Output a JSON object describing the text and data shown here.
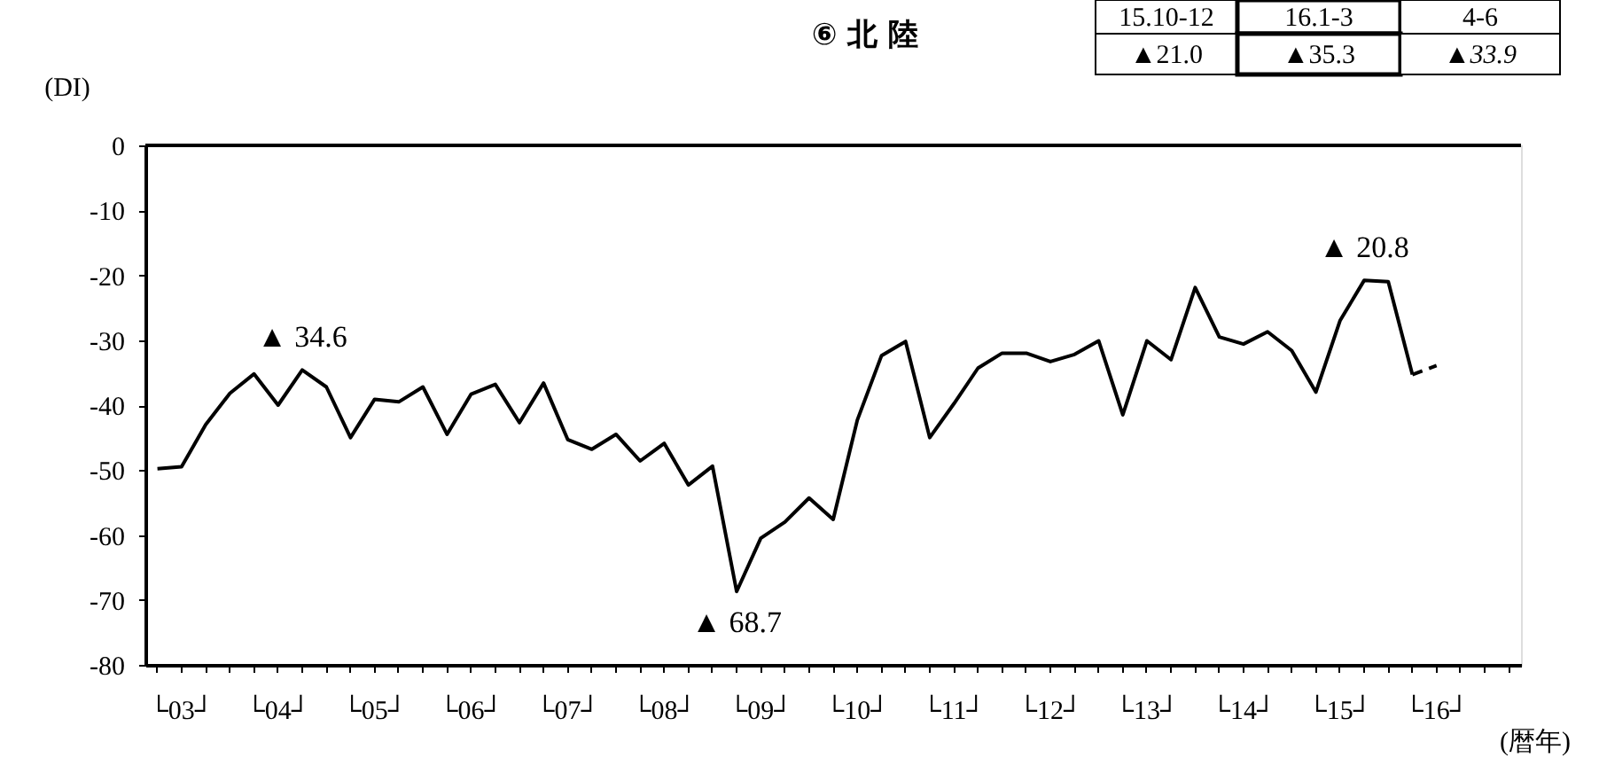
{
  "chart_data": {
    "type": "line",
    "title": "⑥ 北 陸",
    "ylabel": "(DI)",
    "xlabel": "(暦年)",
    "categories": [
      null,
      "└03┘",
      null,
      null,
      null,
      "└04┘",
      null,
      null,
      null,
      "└05┘",
      null,
      null,
      null,
      "└06┘",
      null,
      null,
      null,
      "└07┘",
      null,
      null,
      null,
      "└08┘",
      null,
      null,
      null,
      "└09┘",
      null,
      null,
      null,
      "└10┘",
      null,
      null,
      null,
      "└11┘",
      null,
      null,
      null,
      "└12┘",
      null,
      null,
      null,
      "└13┘",
      null,
      null,
      null,
      "└14┘",
      null,
      null,
      null,
      "└15┘",
      null,
      null,
      null,
      "└16┘",
      null,
      null,
      null
    ],
    "series": [
      {
        "color": "#000000",
        "line_style": "solid",
        "values": [
          -49.8,
          -49.5,
          -43.0,
          -38.2,
          -35.2,
          -40.0,
          -34.6,
          -37.2,
          -45.0,
          -39.1,
          -39.5,
          -37.2,
          -44.5,
          -38.3,
          -36.8,
          -42.7,
          -36.6,
          -45.3,
          -46.8,
          -44.5,
          -48.6,
          -45.9,
          -52.3,
          -49.4,
          -68.7,
          -60.5,
          -58.0,
          -54.3,
          -57.6,
          -42.3,
          -32.4,
          -30.2,
          -45.0,
          -39.8,
          -34.3,
          -32.0,
          -32.0,
          -33.3,
          -32.2,
          -30.1,
          -41.5,
          -30.1,
          -33.0,
          -21.9,
          -29.5,
          -30.6,
          -28.7,
          -31.6,
          -38.0,
          -27.0,
          -20.8,
          -21.0,
          -35.3,
          null,
          null,
          null,
          null
        ]
      },
      {
        "type": "line",
        "color": "#000000",
        "line_style": "dashed",
        "values": [
          null,
          null,
          null,
          null,
          null,
          null,
          null,
          null,
          null,
          null,
          null,
          null,
          null,
          null,
          null,
          null,
          null,
          null,
          null,
          null,
          null,
          null,
          null,
          null,
          null,
          null,
          null,
          null,
          null,
          null,
          null,
          null,
          null,
          null,
          null,
          null,
          null,
          null,
          null,
          null,
          null,
          null,
          null,
          null,
          null,
          null,
          null,
          null,
          null,
          null,
          null,
          null,
          -35.3,
          -33.9,
          null,
          null,
          null
        ]
      }
    ],
    "ylim": [
      -80,
      0
    ],
    "yticks": [
      -80,
      -70,
      -60,
      -50,
      -40,
      -30,
      -20,
      -10,
      0
    ],
    "ref_lines": [
      {
        "axis": "y",
        "value": 0
      }
    ],
    "grid": false,
    "marker": "none",
    "annotations": [
      "15.10-12",
      "16.1-3",
      "4-6",
      "▲21.0",
      "▲35.3",
      "▲33.9",
      {
        "text": "▲ 34.6",
        "y": -34.6
      },
      {
        "text": "▲ 68.7",
        "y": -68.7
      },
      {
        "text": "▲ 20.8",
        "y": -20.8
      }
    ]
  }
}
